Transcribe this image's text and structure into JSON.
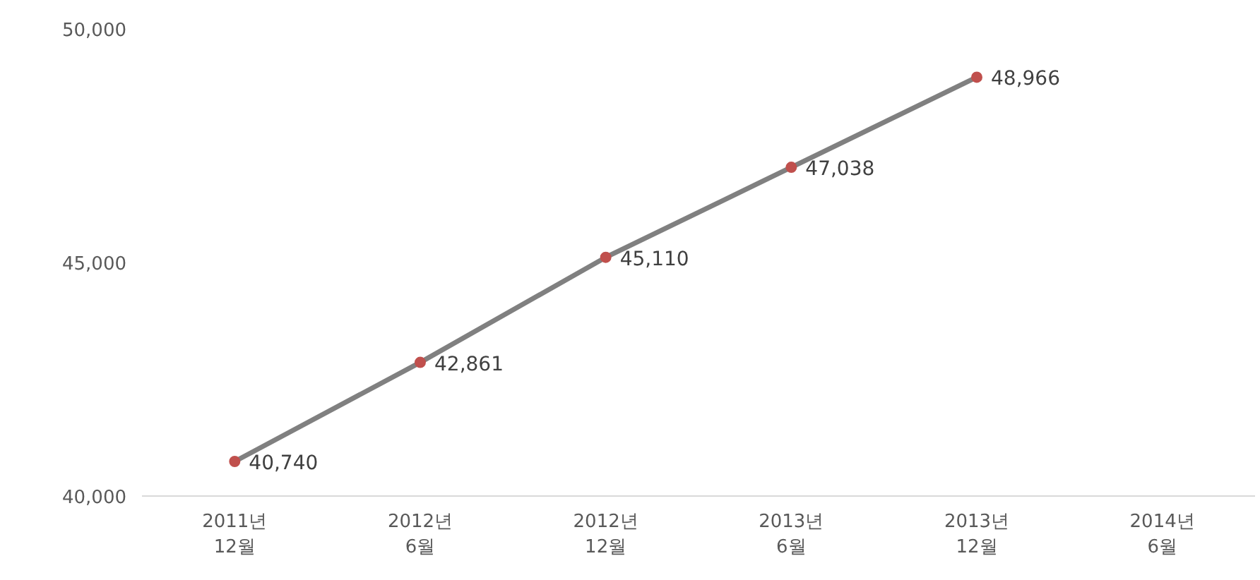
{
  "chart_data": {
    "type": "line",
    "categories": [
      "2011년\n12월",
      "2012년\n6월",
      "2012년\n12월",
      "2013년\n6월",
      "2013년\n12월",
      "2014년\n6월"
    ],
    "series": [
      {
        "color": "#808080",
        "colors": [
          "#c0504d",
          "#c0504d",
          "#c0504d",
          "#c0504d",
          "#c0504d",
          "#c0504d"
        ],
        "values": [
          40740,
          42861,
          45110,
          47038,
          48966,
          null
        ]
      }
    ],
    "value_labels": [
      "40,740",
      "42,861",
      "45,110",
      "47,038",
      "48,966",
      null
    ],
    "marker": "circle",
    "ylim": [
      40000,
      50000
    ],
    "yticks": [
      {
        "value": 40000,
        "label": "40,000"
      },
      {
        "value": 45000,
        "label": "45,000"
      },
      {
        "value": 50000,
        "label": "50,000"
      }
    ],
    "grid": false
  }
}
